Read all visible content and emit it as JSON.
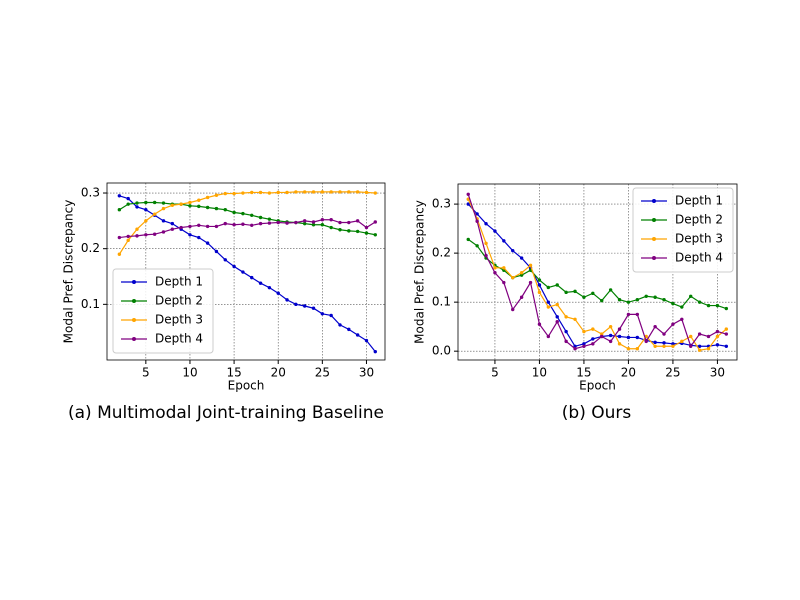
{
  "chart_data": [
    {
      "type": "line",
      "caption": "(a) Multimodal Joint-training Baseline",
      "x_label": "Epoch",
      "y_label": "Modal Pref. Discrepancy",
      "x": [
        2,
        3,
        4,
        5,
        6,
        7,
        8,
        9,
        10,
        11,
        12,
        13,
        14,
        15,
        16,
        17,
        18,
        19,
        20,
        21,
        22,
        23,
        24,
        25,
        26,
        27,
        28,
        29,
        30,
        31
      ],
      "xlim": [
        0.6,
        32.1
      ],
      "ylim": [
        0.0,
        0.318
      ],
      "xticks": [
        5,
        10,
        15,
        20,
        25,
        30
      ],
      "yticks": [
        0.1,
        0.2,
        0.3
      ],
      "grid": true,
      "legend": "lower left",
      "series": [
        {
          "name": "Depth 1",
          "color": "#0000cc",
          "values": [
            0.295,
            0.29,
            0.275,
            0.27,
            0.26,
            0.25,
            0.245,
            0.235,
            0.225,
            0.22,
            0.21,
            0.195,
            0.18,
            0.168,
            0.158,
            0.148,
            0.138,
            0.13,
            0.12,
            0.108,
            0.1,
            0.097,
            0.093,
            0.083,
            0.08,
            0.063,
            0.055,
            0.045,
            0.035,
            0.015
          ]
        },
        {
          "name": "Depth 2",
          "color": "#008000",
          "values": [
            0.27,
            0.28,
            0.282,
            0.283,
            0.283,
            0.282,
            0.28,
            0.28,
            0.277,
            0.276,
            0.274,
            0.272,
            0.27,
            0.265,
            0.263,
            0.26,
            0.256,
            0.253,
            0.25,
            0.248,
            0.247,
            0.245,
            0.243,
            0.243,
            0.238,
            0.234,
            0.232,
            0.231,
            0.228,
            0.225
          ]
        },
        {
          "name": "Depth 3",
          "color": "#ffa500",
          "values": [
            0.19,
            0.215,
            0.235,
            0.25,
            0.262,
            0.272,
            0.278,
            0.28,
            0.283,
            0.287,
            0.292,
            0.296,
            0.299,
            0.299,
            0.3,
            0.301,
            0.301,
            0.3,
            0.301,
            0.301,
            0.302,
            0.302,
            0.302,
            0.302,
            0.302,
            0.302,
            0.302,
            0.302,
            0.301,
            0.3
          ]
        },
        {
          "name": "Depth 4",
          "color": "#800080",
          "values": [
            0.22,
            0.222,
            0.223,
            0.225,
            0.226,
            0.23,
            0.235,
            0.238,
            0.24,
            0.242,
            0.24,
            0.24,
            0.245,
            0.243,
            0.244,
            0.242,
            0.245,
            0.246,
            0.247,
            0.246,
            0.247,
            0.25,
            0.248,
            0.252,
            0.252,
            0.247,
            0.247,
            0.25,
            0.238,
            0.248
          ]
        }
      ]
    },
    {
      "type": "line",
      "caption": "(b) Ours",
      "x_label": "Epoch",
      "y_label": "Modal Pref. Discrepancy",
      "x": [
        2,
        3,
        4,
        5,
        6,
        7,
        8,
        9,
        10,
        11,
        12,
        13,
        14,
        15,
        16,
        17,
        18,
        19,
        20,
        21,
        22,
        23,
        24,
        25,
        26,
        27,
        28,
        29,
        30,
        31
      ],
      "xlim": [
        0.85,
        32.2
      ],
      "ylim": [
        -0.018,
        0.341
      ],
      "xticks": [
        5,
        10,
        15,
        20,
        25,
        30
      ],
      "yticks": [
        {
          "value": 0,
          "label": "0.0"
        },
        0.1,
        0.2,
        0.3
      ],
      "grid": true,
      "legend": "upper right",
      "series": [
        {
          "name": "Depth 1",
          "color": "#0000cc",
          "values": [
            0.3,
            0.28,
            0.26,
            0.245,
            0.225,
            0.205,
            0.19,
            0.17,
            0.135,
            0.1,
            0.07,
            0.04,
            0.01,
            0.015,
            0.025,
            0.03,
            0.032,
            0.03,
            0.028,
            0.028,
            0.022,
            0.018,
            0.017,
            0.015,
            0.016,
            0.012,
            0.01,
            0.01,
            0.013,
            0.01
          ]
        },
        {
          "name": "Depth 2",
          "color": "#008000",
          "values": [
            0.228,
            0.215,
            0.19,
            0.175,
            0.165,
            0.15,
            0.155,
            0.165,
            0.145,
            0.13,
            0.135,
            0.12,
            0.122,
            0.11,
            0.118,
            0.103,
            0.125,
            0.105,
            0.1,
            0.105,
            0.112,
            0.11,
            0.105,
            0.097,
            0.09,
            0.112,
            0.1,
            0.093,
            0.093,
            0.087
          ]
        },
        {
          "name": "Depth 3",
          "color": "#ffa500",
          "values": [
            0.31,
            0.27,
            0.22,
            0.17,
            0.17,
            0.15,
            0.16,
            0.175,
            0.12,
            0.09,
            0.095,
            0.07,
            0.065,
            0.04,
            0.045,
            0.035,
            0.05,
            0.015,
            0.005,
            0.005,
            0.03,
            0.01,
            0.01,
            0.01,
            0.02,
            0.03,
            0.002,
            0.005,
            0.03,
            0.045
          ]
        },
        {
          "name": "Depth 4",
          "color": "#800080",
          "values": [
            0.32,
            0.265,
            0.195,
            0.16,
            0.14,
            0.085,
            0.11,
            0.14,
            0.055,
            0.03,
            0.06,
            0.02,
            0.005,
            0.01,
            0.015,
            0.03,
            0.02,
            0.045,
            0.075,
            0.075,
            0.02,
            0.05,
            0.035,
            0.055,
            0.065,
            0.01,
            0.035,
            0.03,
            0.04,
            0.035
          ]
        }
      ]
    }
  ]
}
